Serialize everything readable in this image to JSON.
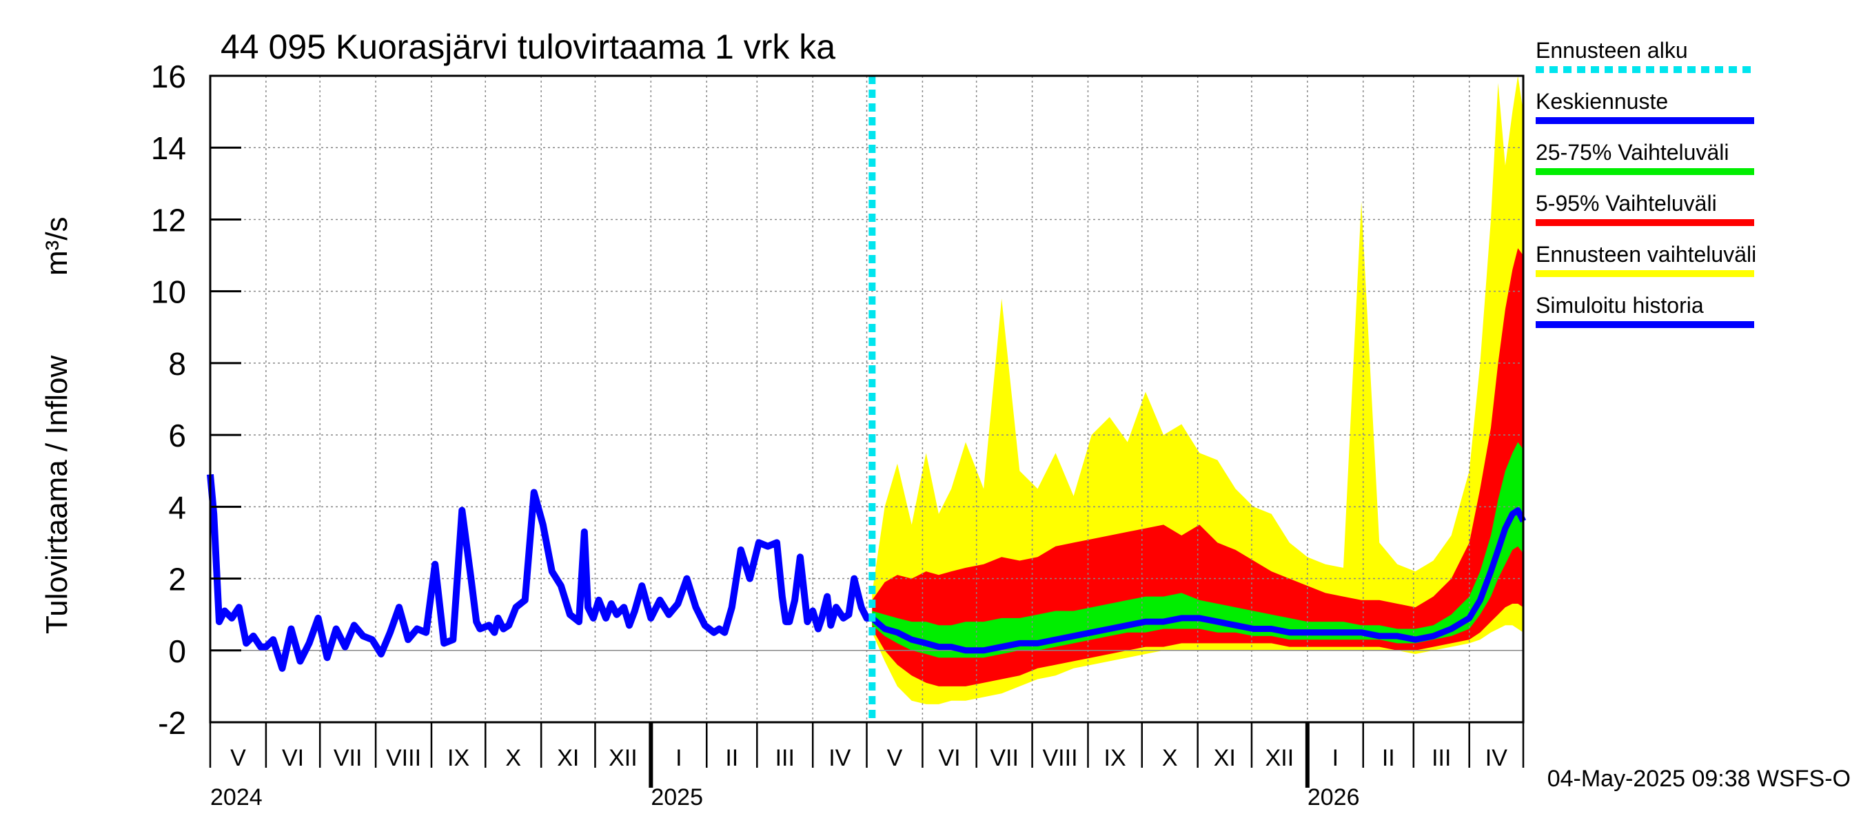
{
  "chart_data": {
    "type": "area",
    "title": "44 095 Kuorasjärvi tulovirtaama 1 vrk ka",
    "ylabel": "Tulovirtaama / Inflow",
    "yunit": "m³/s",
    "ylim": [
      -2,
      16
    ],
    "yticks": [
      -2,
      0,
      2,
      4,
      6,
      8,
      10,
      12,
      14,
      16
    ],
    "xlim_days": [
      0,
      730
    ],
    "forecast_start_day": 368,
    "month_labels": [
      {
        "label": "V",
        "day": 15.5
      },
      {
        "label": "VI",
        "day": 46
      },
      {
        "label": "VII",
        "day": 76.5
      },
      {
        "label": "VIII",
        "day": 107.5
      },
      {
        "label": "IX",
        "day": 138
      },
      {
        "label": "X",
        "day": 168.5
      },
      {
        "label": "XI",
        "day": 199
      },
      {
        "label": "XII",
        "day": 229.5
      },
      {
        "label": "I",
        "day": 260.5
      },
      {
        "label": "II",
        "day": 290
      },
      {
        "label": "III",
        "day": 319.5
      },
      {
        "label": "IV",
        "day": 350
      },
      {
        "label": "V",
        "day": 380.5
      },
      {
        "label": "VI",
        "day": 411
      },
      {
        "label": "VII",
        "day": 441.5
      },
      {
        "label": "VIII",
        "day": 472.5
      },
      {
        "label": "IX",
        "day": 503
      },
      {
        "label": "X",
        "day": 533.5
      },
      {
        "label": "XI",
        "day": 564
      },
      {
        "label": "XII",
        "day": 594.5
      },
      {
        "label": "I",
        "day": 625.5
      },
      {
        "label": "II",
        "day": 655
      },
      {
        "label": "III",
        "day": 684.5
      },
      {
        "label": "IV",
        "day": 715
      }
    ],
    "month_boundaries": [
      0,
      31,
      61,
      92,
      123,
      153,
      184,
      214,
      245,
      276,
      304,
      335,
      365,
      396,
      426,
      457,
      488,
      518,
      549,
      579,
      610,
      641,
      669,
      700,
      730
    ],
    "year_labels": [
      {
        "label": "2024",
        "day": 0
      },
      {
        "label": "2025",
        "day": 245
      },
      {
        "label": "2026",
        "day": 610
      }
    ],
    "year_boundaries": [
      245,
      610
    ],
    "legend": [
      {
        "label": "Ennusteen alku",
        "color": "#00e5ee",
        "style": "dotted"
      },
      {
        "label": "Keskiennuste",
        "color": "#0000ff",
        "style": "solid"
      },
      {
        "label": "25-75% Vaihteluväli",
        "color": "#00ee00",
        "style": "solid"
      },
      {
        "label": "5-95% Vaihteluväli",
        "color": "#ff0000",
        "style": "solid"
      },
      {
        "label": "Ennusteen vaihteluväli",
        "color": "#ffff00",
        "style": "solid"
      },
      {
        "label": "Simuloitu historia",
        "color": "#0000ff",
        "style": "solid"
      }
    ],
    "history": {
      "name": "Simuloitu historia",
      "x": [
        0,
        2,
        5,
        8,
        12,
        16,
        20,
        24,
        28,
        31,
        35,
        40,
        45,
        50,
        55,
        60,
        65,
        70,
        75,
        80,
        85,
        90,
        95,
        100,
        105,
        110,
        115,
        120,
        125,
        130,
        135,
        140,
        145,
        148,
        150,
        155,
        158,
        160,
        163,
        166,
        170,
        175,
        180,
        185,
        190,
        195,
        200,
        205,
        208,
        210,
        213,
        216,
        220,
        223,
        226,
        230,
        233,
        236,
        240,
        245,
        250,
        255,
        260,
        265,
        270,
        275,
        280,
        283,
        286,
        290,
        295,
        300,
        305,
        310,
        315,
        318,
        320,
        322,
        325,
        328,
        332,
        335,
        338,
        340,
        343,
        345,
        348,
        352,
        355,
        358,
        362,
        365,
        368
      ],
      "y": [
        4.9,
        3.8,
        0.8,
        1.1,
        0.9,
        1.2,
        0.2,
        0.4,
        0.1,
        0.1,
        0.3,
        -0.5,
        0.6,
        -0.3,
        0.2,
        0.9,
        -0.2,
        0.6,
        0.1,
        0.7,
        0.4,
        0.3,
        -0.1,
        0.5,
        1.2,
        0.3,
        0.6,
        0.5,
        2.4,
        0.2,
        0.3,
        3.9,
        2.0,
        0.8,
        0.6,
        0.7,
        0.5,
        0.9,
        0.6,
        0.7,
        1.2,
        1.4,
        4.4,
        3.5,
        2.2,
        1.8,
        1.0,
        0.8,
        3.3,
        1.2,
        0.9,
        1.4,
        0.9,
        1.3,
        1.0,
        1.2,
        0.7,
        1.1,
        1.8,
        0.9,
        1.4,
        1.0,
        1.3,
        2.0,
        1.2,
        0.7,
        0.5,
        0.6,
        0.5,
        1.2,
        2.8,
        2.0,
        3.0,
        2.9,
        3.0,
        1.5,
        0.8,
        0.8,
        1.4,
        2.6,
        0.8,
        1.1,
        0.6,
        0.9,
        1.5,
        0.7,
        1.2,
        0.9,
        1.0,
        2.0,
        1.2,
        0.9,
        0.9
      ]
    },
    "forecast": {
      "x": [
        368,
        375,
        382,
        390,
        398,
        405,
        412,
        420,
        430,
        440,
        450,
        460,
        470,
        480,
        490,
        500,
        510,
        520,
        530,
        540,
        550,
        560,
        570,
        580,
        590,
        600,
        610,
        620,
        630,
        640,
        650,
        660,
        670,
        680,
        690,
        700,
        706,
        712,
        716,
        720,
        724,
        727,
        730
      ],
      "median": [
        0.9,
        0.6,
        0.5,
        0.3,
        0.2,
        0.1,
        0.1,
        0.0,
        0.0,
        0.1,
        0.2,
        0.2,
        0.3,
        0.4,
        0.5,
        0.6,
        0.7,
        0.8,
        0.8,
        0.9,
        0.9,
        0.8,
        0.7,
        0.6,
        0.6,
        0.5,
        0.5,
        0.5,
        0.5,
        0.5,
        0.4,
        0.4,
        0.3,
        0.4,
        0.6,
        0.9,
        1.4,
        2.2,
        2.8,
        3.4,
        3.8,
        3.9,
        3.6
      ],
      "p25": [
        0.7,
        0.4,
        0.2,
        0.0,
        -0.1,
        -0.2,
        -0.2,
        -0.2,
        -0.2,
        -0.1,
        0.0,
        0.0,
        0.1,
        0.2,
        0.3,
        0.4,
        0.5,
        0.5,
        0.6,
        0.6,
        0.6,
        0.5,
        0.5,
        0.4,
        0.4,
        0.3,
        0.3,
        0.3,
        0.3,
        0.3,
        0.3,
        0.2,
        0.2,
        0.3,
        0.4,
        0.6,
        1.0,
        1.5,
        2.0,
        2.4,
        2.8,
        2.9,
        2.7
      ],
      "p75": [
        1.1,
        1.0,
        0.9,
        0.8,
        0.8,
        0.7,
        0.7,
        0.8,
        0.8,
        0.9,
        0.9,
        1.0,
        1.1,
        1.1,
        1.2,
        1.3,
        1.4,
        1.5,
        1.5,
        1.6,
        1.4,
        1.3,
        1.2,
        1.1,
        1.0,
        0.9,
        0.8,
        0.8,
        0.8,
        0.7,
        0.7,
        0.6,
        0.6,
        0.7,
        1.0,
        1.5,
        2.2,
        3.2,
        4.2,
        5.0,
        5.5,
        5.8,
        5.6
      ],
      "p5": [
        0.6,
        0.0,
        -0.4,
        -0.7,
        -0.9,
        -1.0,
        -1.0,
        -1.0,
        -0.9,
        -0.8,
        -0.7,
        -0.5,
        -0.4,
        -0.3,
        -0.2,
        -0.1,
        0.0,
        0.1,
        0.1,
        0.2,
        0.2,
        0.2,
        0.2,
        0.2,
        0.2,
        0.1,
        0.1,
        0.1,
        0.1,
        0.1,
        0.1,
        0.0,
        0.0,
        0.1,
        0.2,
        0.3,
        0.5,
        0.8,
        1.0,
        1.2,
        1.3,
        1.3,
        1.2
      ],
      "p95": [
        1.4,
        1.9,
        2.1,
        2.0,
        2.2,
        2.1,
        2.2,
        2.3,
        2.4,
        2.6,
        2.5,
        2.6,
        2.9,
        3.0,
        3.1,
        3.2,
        3.3,
        3.4,
        3.5,
        3.2,
        3.5,
        3.0,
        2.8,
        2.5,
        2.2,
        2.0,
        1.8,
        1.6,
        1.5,
        1.4,
        1.4,
        1.3,
        1.2,
        1.5,
        2.0,
        3.0,
        4.5,
        6.2,
        8.0,
        9.5,
        10.6,
        11.2,
        11.0
      ],
      "min": [
        0.5,
        -0.3,
        -1.0,
        -1.4,
        -1.5,
        -1.5,
        -1.4,
        -1.4,
        -1.3,
        -1.2,
        -1.0,
        -0.8,
        -0.7,
        -0.5,
        -0.4,
        -0.3,
        -0.2,
        -0.1,
        0.0,
        0.0,
        0.0,
        0.0,
        0.0,
        0.0,
        0.0,
        0.0,
        0.0,
        0.0,
        0.0,
        0.0,
        0.0,
        0.0,
        -0.1,
        0.0,
        0.1,
        0.2,
        0.3,
        0.5,
        0.6,
        0.7,
        0.7,
        0.6,
        0.5
      ],
      "max": [
        1.6,
        4.0,
        5.2,
        3.5,
        5.5,
        3.8,
        4.5,
        5.8,
        4.5,
        9.8,
        5.0,
        4.5,
        5.5,
        4.3,
        6.0,
        6.5,
        5.8,
        7.2,
        6.0,
        6.3,
        5.5,
        5.3,
        4.5,
        4.0,
        3.8,
        3.0,
        2.6,
        2.4,
        2.3,
        12.5,
        3.0,
        2.4,
        2.2,
        2.5,
        3.2,
        5.0,
        8.0,
        12.0,
        15.8,
        13.5,
        15.0,
        16.0,
        15.0
      ]
    },
    "footer_timestamp": "04-May-2025 09:38 WSFS-O"
  }
}
